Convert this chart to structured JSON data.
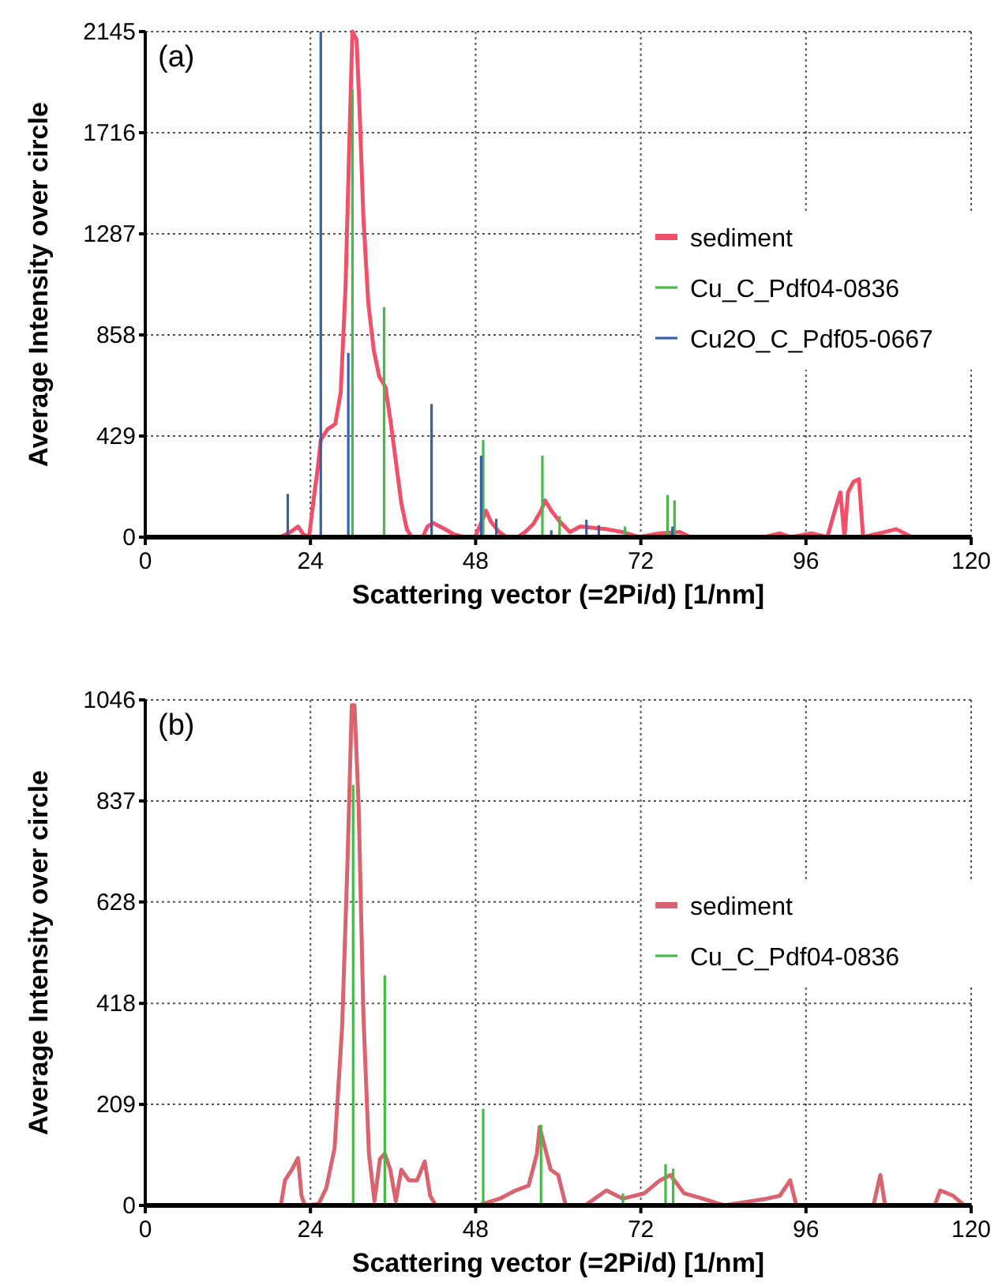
{
  "chart_data": [
    {
      "type": "line",
      "xlabel": "Scattering vector (=2Pi/d) [1/nm]",
      "ylabel": "Average Intensity over circle",
      "annotations": [
        "(a)"
      ],
      "xlim": [
        0,
        120
      ],
      "xticks": [
        0,
        24,
        48,
        72,
        96,
        120
      ],
      "ylim": [
        0,
        2145
      ],
      "yticks": [
        0,
        429,
        858,
        1287,
        1716,
        2145
      ],
      "grid": true,
      "legend": "right",
      "series": [
        {
          "name": "sediment",
          "color": "#f0506a",
          "x": [
            19.6,
            21.1,
            22.2,
            23.0,
            23.8,
            24.5,
            25.1,
            25.5,
            26.5,
            27.6,
            28.4,
            29.1,
            29.7,
            30.1,
            30.7,
            31.1,
            31.7,
            32.4,
            33.2,
            34.0,
            34.9,
            35.7,
            36.4,
            37.2,
            38.0,
            38.7,
            40.3,
            41.0,
            41.8,
            43.3,
            44.9,
            46.4,
            47.9,
            48.9,
            49.5,
            50.2,
            51.4,
            52.5,
            54.1,
            55.2,
            56.4,
            57.5,
            58.1,
            59.0,
            60.2,
            61.7,
            63.2,
            67.0,
            69.3,
            71.7,
            74.7,
            77.7,
            79.2,
            89.9,
            92.2,
            93.8,
            96.8,
            99.1,
            100.3,
            101.0,
            101.6,
            102.1,
            102.9,
            103.7,
            104.3,
            107.5,
            109.1,
            111.4,
            119.0
          ],
          "values": [
            0,
            22,
            45,
            11,
            0,
            168,
            302,
            413,
            458,
            480,
            614,
            1061,
            1731,
            2145,
            2111,
            1843,
            1352,
            995,
            793,
            681,
            637,
            480,
            324,
            145,
            34,
            0,
            0,
            45,
            60,
            38,
            11,
            0,
            0,
            67,
            112,
            67,
            22,
            0,
            0,
            22,
            56,
            112,
            156,
            112,
            67,
            22,
            45,
            34,
            22,
            0,
            16,
            22,
            0,
            0,
            16,
            0,
            16,
            0,
            123,
            190,
            0,
            190,
            235,
            246,
            0,
            22,
            34,
            0,
            0
          ]
        },
        {
          "name": "Cu_C_Pdf04-0836",
          "type": "bar",
          "color": "#44bb44",
          "x": [
            30.1,
            34.7,
            49.1,
            57.7,
            60.2,
            69.7,
            75.9,
            76.9
          ],
          "values": [
            1900,
            976,
            413,
            346,
            89,
            45,
            179,
            156
          ]
        },
        {
          "name": "Cu2O_C_Pdf05-0667",
          "type": "bar",
          "color": "#3a5fa8",
          "x": [
            20.7,
            25.5,
            29.5,
            41.6,
            48.8,
            51.0,
            59.0,
            64.1,
            65.9,
            76.6
          ],
          "values": [
            183,
            2145,
            782,
            565,
            346,
            78,
            29,
            74,
            50,
            45
          ]
        }
      ]
    },
    {
      "type": "line",
      "xlabel": "Scattering vector (=2Pi/d) [1/nm]",
      "ylabel": "Average Intensity over circle",
      "annotations": [
        "(b)"
      ],
      "xlim": [
        0,
        120
      ],
      "xticks": [
        0,
        24,
        48,
        72,
        96,
        120
      ],
      "ylim": [
        0,
        1046
      ],
      "yticks": [
        0,
        209,
        418,
        628,
        837,
        1046
      ],
      "grid": true,
      "legend": "right",
      "series": [
        {
          "name": "sediment",
          "color": "#d9636e",
          "x": [
            19.7,
            20.3,
            21.3,
            22.2,
            22.7,
            23.2,
            25.2,
            26.3,
            27.5,
            28.6,
            29.4,
            30.0,
            30.4,
            31.0,
            31.7,
            32.5,
            33.3,
            34.1,
            34.8,
            35.6,
            36.4,
            37.2,
            38.3,
            39.5,
            40.6,
            41.4,
            42.2,
            48.4,
            51.5,
            53.8,
            55.7,
            56.9,
            57.3,
            58.1,
            58.9,
            60.0,
            61.1,
            63.9,
            67.0,
            69.4,
            72.5,
            74.8,
            76.3,
            78.3,
            81.0,
            84.1,
            90.3,
            92.2,
            93.7,
            94.6,
            105.8,
            106.8,
            107.5,
            114.7,
            115.5,
            117.4,
            119.0
          ],
          "values": [
            0,
            52,
            74,
            98,
            20,
            0,
            3,
            36,
            118,
            369,
            718,
            1035,
            1035,
            828,
            391,
            107,
            9,
            96,
            107,
            74,
            9,
            74,
            52,
            52,
            91,
            20,
            0,
            0,
            14,
            31,
            41,
            107,
            162,
            118,
            74,
            63,
            0,
            0,
            31,
            14,
            25,
            52,
            63,
            25,
            14,
            0,
            14,
            20,
            52,
            0,
            0,
            63,
            0,
            0,
            31,
            20,
            0
          ]
        },
        {
          "name": "Cu_C_Pdf04-0836",
          "type": "bar",
          "color": "#44bb44",
          "x": [
            30.2,
            34.8,
            49.1,
            57.5,
            69.4,
            75.6,
            76.7
          ],
          "values": [
            870,
            476,
            200,
            167,
            25,
            85,
            76
          ]
        }
      ]
    }
  ]
}
